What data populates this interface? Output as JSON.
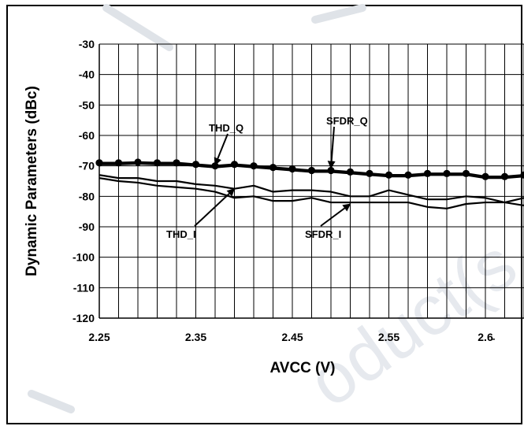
{
  "chart_data": {
    "type": "line",
    "xlabel": "AVCC (V)",
    "ylabel": "Dynamic Parameters (dBc)",
    "xlim": [
      2.25,
      2.69
    ],
    "ylim": [
      -120,
      -30
    ],
    "x_ticks": [
      "2.25",
      "2.35",
      "2.45",
      "2.55",
      "2.6̵"
    ],
    "y_ticks": [
      "-30",
      "-40",
      "-50",
      "-60",
      "-70",
      "-80",
      "-90",
      "-100",
      "-110",
      "-120"
    ],
    "grid": true,
    "x": [
      2.25,
      2.27,
      2.29,
      2.31,
      2.33,
      2.35,
      2.37,
      2.39,
      2.41,
      2.43,
      2.45,
      2.47,
      2.49,
      2.51,
      2.53,
      2.55,
      2.57,
      2.59,
      2.61,
      2.63,
      2.65,
      2.67,
      2.69
    ],
    "series": [
      {
        "name": "SFDR_Q",
        "markers": true,
        "values": [
          -69,
          -69,
          -68.8,
          -69,
          -69,
          -69.5,
          -70,
          -69.5,
          -70,
          -70.5,
          -71,
          -71.5,
          -71.5,
          -72,
          -72.5,
          -73,
          -73,
          -72.5,
          -72.5,
          -72.5,
          -73.5,
          -73.5,
          -73
        ]
      },
      {
        "name": "THD_Q",
        "markers": false,
        "values": [
          -69.5,
          -69.5,
          -69.3,
          -69.5,
          -69.5,
          -70,
          -70.5,
          -70,
          -70.5,
          -71,
          -71.5,
          -72,
          -72,
          -72.5,
          -73,
          -73.5,
          -73.5,
          -73,
          -73,
          -73,
          -74,
          -74,
          -73.5
        ]
      },
      {
        "name": "THD_I",
        "markers": false,
        "values": [
          -73,
          -74,
          -74,
          -75,
          -75,
          -76,
          -76.5,
          -77.5,
          -76.5,
          -78.5,
          -78,
          -78,
          -78.5,
          -80,
          -80,
          -78,
          -79.5,
          -81,
          -81,
          -80,
          -80.5,
          -82,
          -80.5
        ]
      },
      {
        "name": "SFDR_I",
        "markers": false,
        "values": [
          -74,
          -75,
          -75.5,
          -76.5,
          -77,
          -77.5,
          -78.5,
          -80.5,
          -80,
          -81.5,
          -81.5,
          -80.5,
          -82,
          -82,
          -82,
          -82,
          -82,
          -83.5,
          -84,
          -82.5,
          -82,
          -82,
          -83
        ]
      }
    ],
    "annotations": [
      {
        "text": "THD_Q",
        "target_series": "THD_Q",
        "point_x": 2.37,
        "point_y": -70.5
      },
      {
        "text": "SFDR_Q",
        "target_series": "SFDR_Q",
        "point_x": 2.49,
        "point_y": -71.5
      },
      {
        "text": "THD_I",
        "target_series": "THD_I",
        "point_x": 2.39,
        "point_y": -77
      },
      {
        "text": "SFDR_I",
        "target_series": "SFDR_I",
        "point_x": 2.51,
        "point_y": -82
      }
    ]
  },
  "colors": {
    "series": "#000000",
    "grid": "#000000",
    "background": "#ffffff",
    "watermark": "#d9dde3"
  }
}
